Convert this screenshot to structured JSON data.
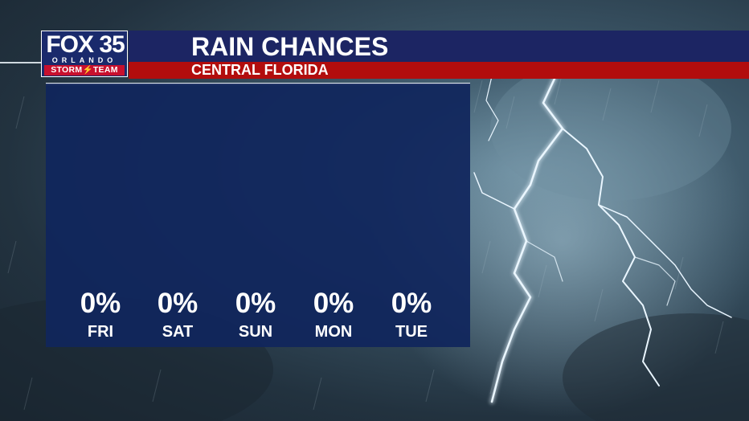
{
  "logo": {
    "brand": "FOX 35",
    "city": "ORLANDO",
    "team": "STORM⚡TEAM"
  },
  "header": {
    "title": "RAIN CHANCES",
    "subtitle": "CENTRAL FLORIDA"
  },
  "forecast": [
    {
      "day": "FRI",
      "chance": "0%"
    },
    {
      "day": "SAT",
      "chance": "0%"
    },
    {
      "day": "SUN",
      "chance": "0%"
    },
    {
      "day": "MON",
      "chance": "0%"
    },
    {
      "day": "TUE",
      "chance": "0%"
    }
  ],
  "colors": {
    "header_navy": "#1c2563",
    "header_red": "#b20d0d",
    "panel_navy": "#10265c"
  }
}
